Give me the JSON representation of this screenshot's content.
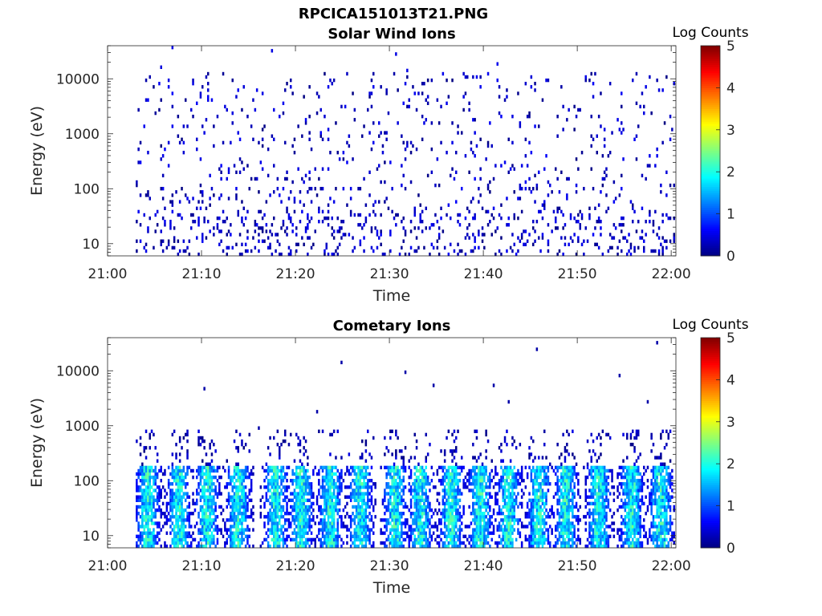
{
  "figure": {
    "title": "RPCICA151013T21.PNG"
  },
  "colors": {
    "colormap": "jet",
    "axis": "#262626",
    "background": "#ffffff"
  },
  "chart_data": [
    {
      "type": "heatmap",
      "title": "Solar Wind Ions",
      "xlabel": "Time",
      "ylabel": "Energy (eV)",
      "x_ticks": [
        "21:00",
        "21:10",
        "21:20",
        "21:30",
        "21:40",
        "21:50",
        "22:00"
      ],
      "x_range_minutes": [
        0,
        60.5
      ],
      "y_ticks": [
        "10",
        "100",
        "1000",
        "10000"
      ],
      "y_tick_values": [
        10,
        100,
        1000,
        10000
      ],
      "y_scale": "log",
      "ylim": [
        6,
        40000
      ],
      "data_start_minute": 3,
      "typical_log_counts": [
        0,
        1
      ],
      "colorbar": {
        "label": "Log Counts",
        "ticks": [
          "0",
          "1",
          "2",
          "3",
          "4",
          "5"
        ],
        "range": [
          0,
          5
        ]
      },
      "grid": false
    },
    {
      "type": "heatmap",
      "title": "Cometary Ions",
      "xlabel": "Time",
      "ylabel": "Energy (eV)",
      "x_ticks": [
        "21:00",
        "21:10",
        "21:20",
        "21:30",
        "21:40",
        "21:50",
        "22:00"
      ],
      "x_range_minutes": [
        0,
        60.5
      ],
      "y_ticks": [
        "10",
        "100",
        "1000",
        "10000"
      ],
      "y_tick_values": [
        10,
        100,
        1000,
        10000
      ],
      "y_scale": "log",
      "ylim": [
        6,
        40000
      ],
      "data_start_minute": 3,
      "typical_log_counts": [
        0,
        2.5
      ],
      "burst_minutes": [
        4.2,
        7.5,
        10.5,
        13.8,
        17.8,
        20.5,
        23.6,
        26.8,
        30.5,
        33.2,
        36.5,
        39.6,
        42.6,
        45.8,
        48.7,
        52.2,
        55.7,
        58.8
      ],
      "colorbar": {
        "label": "Log Counts",
        "ticks": [
          "0",
          "1",
          "2",
          "3",
          "4",
          "5"
        ],
        "range": [
          0,
          5
        ]
      },
      "grid": false
    }
  ]
}
